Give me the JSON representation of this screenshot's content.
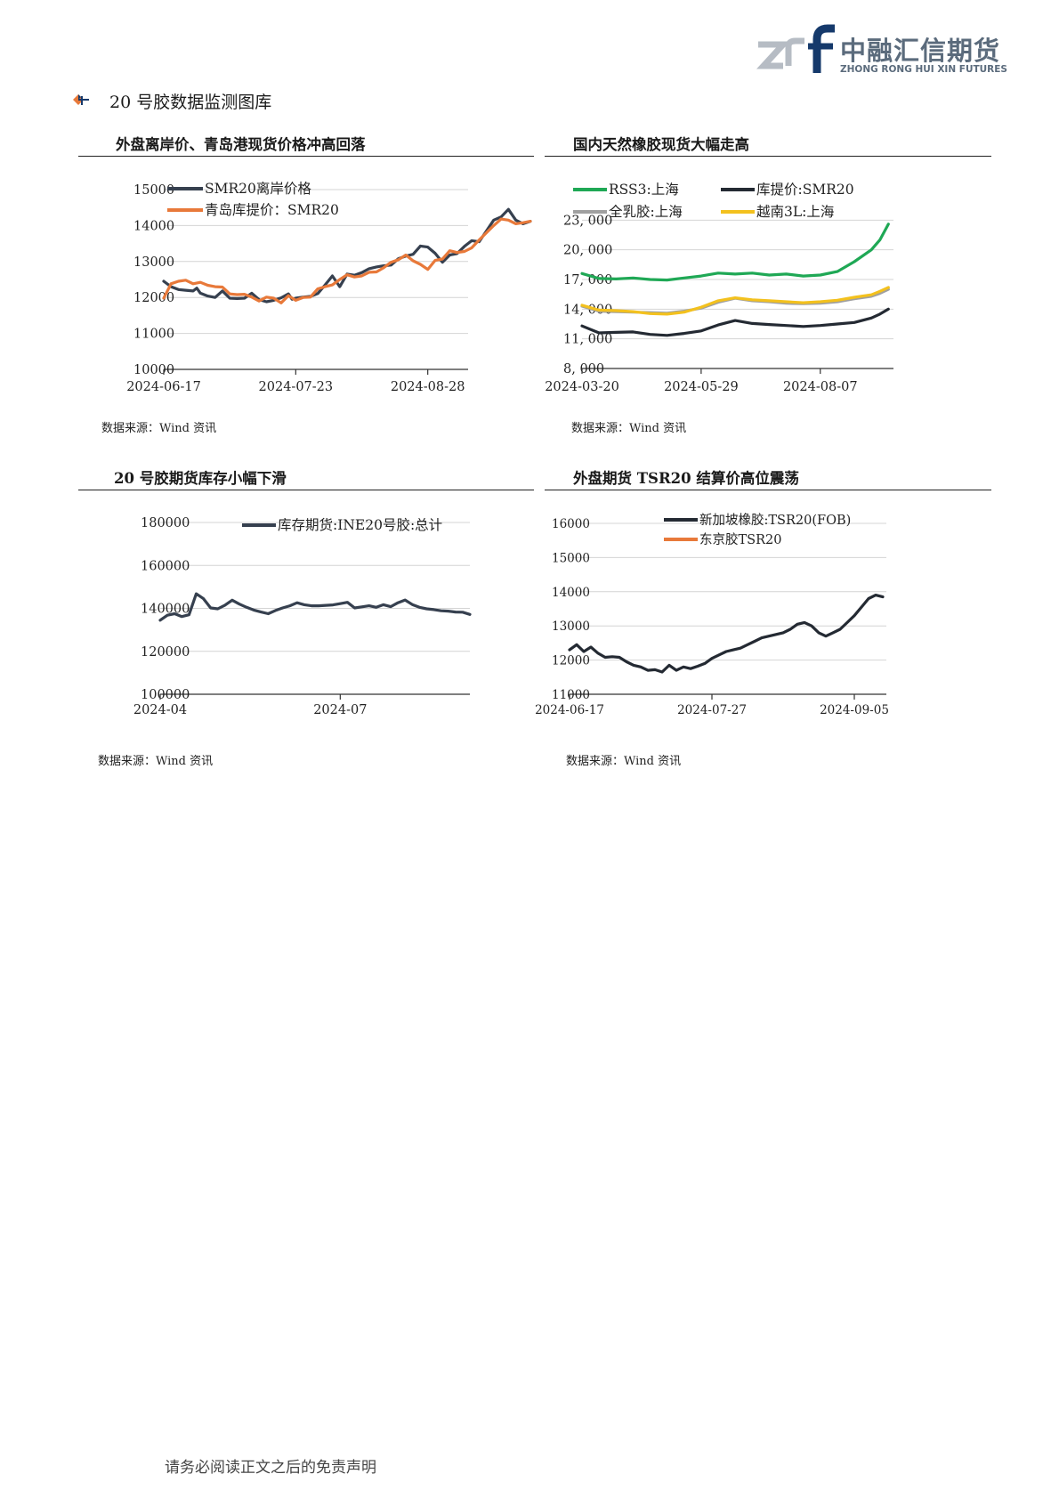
{
  "logo": {
    "cn": "中融汇信期货",
    "en": "ZHONG RONG HUI XIN FUTURES",
    "brand_color": "#15396b",
    "mark_color": "#b6bcc4"
  },
  "section": {
    "title": "20 号胶数据监测图库",
    "icon": "diamond-arrow-icon"
  },
  "footer": {
    "disclaimer": "请务必阅读正文之后的免责声明"
  },
  "charts": [
    {
      "title": "外盘离岸价、青岛港现货价格冲高回落",
      "source": "数据来源：Wind 资讯",
      "chart_data": {
        "type": "line",
        "xlabel": "",
        "ylabel": "",
        "ylim": [
          10000,
          15000
        ],
        "yticks": [
          10000,
          11000,
          12000,
          13000,
          14000,
          15000
        ],
        "ytick_labels": [
          "10000",
          "11000",
          "12000",
          "13000",
          "14000",
          "15000"
        ],
        "xlim": [
          0,
          83
        ],
        "xticks": [
          0,
          36,
          72
        ],
        "xtick_labels": [
          "2024-06-17",
          "2024-07-23",
          "2024-08-28"
        ],
        "legend": "top-left",
        "series": [
          {
            "name": "SMR20离岸价格",
            "color": "#36404f",
            "x": [
              0,
              2,
              4,
              6,
              8,
              9,
              10,
              12,
              14,
              16,
              18,
              20,
              22,
              24,
              26,
              28,
              30,
              32,
              34,
              35,
              36,
              38,
              40,
              42,
              44,
              46,
              48,
              50,
              52,
              54,
              56,
              58,
              60,
              62,
              64,
              66,
              68,
              70,
              72,
              74,
              76,
              78,
              80,
              82,
              84,
              86,
              88,
              90,
              92,
              94,
              96,
              98,
              100
            ],
            "values": [
              12450,
              12300,
              12220,
              12200,
              12180,
              12260,
              12120,
              12040,
              12000,
              12180,
              11980,
              11970,
              11980,
              12120,
              11940,
              11880,
              11920,
              11990,
              12100,
              11950,
              11980,
              12010,
              12030,
              12110,
              12350,
              12600,
              12300,
              12650,
              12620,
              12690,
              12800,
              12850,
              12880,
              12900,
              13080,
              13150,
              13200,
              13430,
              13400,
              13230,
              12980,
              13180,
              13220,
              13420,
              13580,
              13550,
              13850,
              14150,
              14240,
              14450,
              14150,
              14050,
              14120
            ]
          },
          {
            "name": "青岛库提价：SMR20",
            "color": "#e8793a",
            "x": [
              0,
              2,
              4,
              6,
              8,
              10,
              12,
              14,
              16,
              18,
              20,
              22,
              24,
              26,
              28,
              30,
              32,
              34,
              36,
              38,
              40,
              42,
              44,
              46,
              48,
              50,
              52,
              54,
              56,
              58,
              60,
              62,
              64,
              66,
              68,
              70,
              72,
              74,
              76,
              78,
              80,
              82,
              84,
              86,
              88,
              90,
              92,
              94,
              96,
              98,
              100
            ],
            "values": [
              11980,
              12380,
              12450,
              12480,
              12380,
              12420,
              12340,
              12300,
              12290,
              12100,
              12080,
              12090,
              12010,
              11900,
              12010,
              11980,
              11850,
              12050,
              11920,
              12000,
              12010,
              12240,
              12300,
              12350,
              12500,
              12630,
              12570,
              12600,
              12700,
              12710,
              12830,
              12980,
              13050,
              13180,
              13020,
              12920,
              12780,
              13030,
              13070,
              13300,
              13250,
              13280,
              13380,
              13600,
              13800,
              14000,
              14180,
              14150,
              14050,
              14080,
              14120
            ]
          }
        ]
      }
    },
    {
      "title": "国内天然橡胶现货大幅走高",
      "source": "数据来源：Wind 资讯",
      "chart_data": {
        "type": "line",
        "xlabel": "",
        "ylabel": "",
        "ylim": [
          8000,
          26000
        ],
        "yticks": [
          8000,
          11000,
          14000,
          17000,
          20000,
          23000
        ],
        "ytick_labels": [
          "8, 000",
          "11, 000",
          "14, 000",
          "17, 000",
          "20, 000",
          "23, 000"
        ],
        "xlim": [
          0,
          183
        ],
        "xticks": [
          0,
          70,
          140
        ],
        "xtick_labels": [
          "2024-03-20",
          "2024-05-29",
          "2024-08-07"
        ],
        "legend": "top",
        "series": [
          {
            "name": "RSS3:上海",
            "color": "#1fa855",
            "x": [
              0,
              10,
              20,
              30,
              40,
              50,
              60,
              70,
              80,
              90,
              100,
              110,
              120,
              130,
              140,
              150,
              160,
              170,
              175,
              180
            ],
            "values": [
              17600,
              17100,
              17050,
              17150,
              17000,
              16950,
              17150,
              17350,
              17650,
              17550,
              17650,
              17450,
              17550,
              17350,
              17450,
              17800,
              18800,
              20000,
              21000,
              22600
            ]
          },
          {
            "name": "库提价:SMR20",
            "color": "#242a33",
            "x": [
              0,
              10,
              20,
              30,
              40,
              50,
              60,
              70,
              80,
              90,
              100,
              110,
              120,
              130,
              140,
              150,
              160,
              170,
              175,
              180
            ],
            "values": [
              12300,
              11600,
              11650,
              11700,
              11450,
              11350,
              11550,
              11800,
              12400,
              12850,
              12550,
              12450,
              12350,
              12250,
              12350,
              12500,
              12650,
              13100,
              13500,
              14000
            ]
          },
          {
            "name": "全乳胶:上海",
            "color": "#a0a0a0",
            "x": [
              0,
              10,
              20,
              30,
              40,
              50,
              60,
              70,
              80,
              90,
              100,
              110,
              120,
              130,
              140,
              150,
              160,
              170,
              175,
              180
            ],
            "values": [
              14300,
              13800,
              13750,
              13700,
              13650,
              13600,
              13800,
              14100,
              14700,
              15100,
              14850,
              14750,
              14600,
              14550,
              14600,
              14750,
              15050,
              15300,
              15600,
              16000
            ]
          },
          {
            "name": "越南3L:上海",
            "color": "#f3c11e",
            "x": [
              0,
              10,
              20,
              30,
              40,
              50,
              60,
              70,
              80,
              90,
              100,
              110,
              120,
              130,
              140,
              150,
              160,
              170,
              175,
              180
            ],
            "values": [
              14400,
              13900,
              13850,
              13750,
              13550,
              13500,
              13700,
              14200,
              14850,
              15150,
              14950,
              14850,
              14750,
              14650,
              14750,
              14900,
              15200,
              15450,
              15800,
              16200
            ]
          }
        ]
      }
    },
    {
      "title": "20 号胶期货库存小幅下滑",
      "source": "数据来源：Wind 资讯",
      "chart_data": {
        "type": "line",
        "xlabel": "",
        "ylabel": "",
        "ylim": [
          100000,
          180000
        ],
        "yticks": [
          100000,
          120000,
          140000,
          160000,
          180000
        ],
        "ytick_labels": [
          "100000",
          "120000",
          "140000",
          "160000",
          "180000"
        ],
        "xlim": [
          0,
          172
        ],
        "xticks": [
          0,
          100
        ],
        "xtick_labels": [
          "2024-04",
          "2024-07"
        ],
        "legend": "top-right",
        "series": [
          {
            "name": "库存期货:INE20号胶:总计",
            "color": "#36404f",
            "x": [
              0,
              4,
              8,
              12,
              16,
              20,
              24,
              28,
              32,
              36,
              40,
              44,
              48,
              52,
              56,
              60,
              64,
              68,
              72,
              76,
              80,
              84,
              88,
              92,
              96,
              100,
              104,
              108,
              112,
              116,
              120,
              124,
              128,
              132,
              136,
              140,
              144,
              148,
              152,
              156,
              160,
              164,
              168,
              172
            ],
            "values": [
              134500,
              136800,
              137500,
              136200,
              137000,
              146800,
              144500,
              140200,
              139800,
              141500,
              143800,
              142000,
              140500,
              139200,
              138300,
              137500,
              139000,
              140200,
              141200,
              142600,
              141700,
              141200,
              141200,
              141400,
              141600,
              142200,
              142800,
              140200,
              140700,
              141200,
              140500,
              141700,
              140800,
              142600,
              143900,
              141800,
              140500,
              139800,
              139400,
              138900,
              138700,
              138300,
              138200,
              137200
            ]
          }
        ]
      }
    },
    {
      "title": "外盘期货 TSR20 结算价高位震荡",
      "source": "数据来源：Wind 资讯",
      "chart_data": {
        "type": "line",
        "xlabel": "",
        "ylabel": "",
        "ylim": [
          11000,
          16000
        ],
        "yticks": [
          11000,
          12000,
          13000,
          14000,
          15000,
          16000
        ],
        "ytick_labels": [
          "11000",
          "12000",
          "13000",
          "14000",
          "15000",
          "16000"
        ],
        "xlim": [
          0,
          89
        ],
        "xticks": [
          0,
          40,
          80
        ],
        "xtick_labels": [
          "2024-06-17",
          "2024-07-27",
          "2024-09-05"
        ],
        "legend": "top",
        "series": [
          {
            "name": "新加坡橡胶:TSR20(FOB)",
            "color": "#242a33",
            "x": [
              0,
              2,
              4,
              6,
              8,
              10,
              12,
              14,
              16,
              18,
              20,
              22,
              24,
              26,
              28,
              30,
              32,
              34,
              36,
              38,
              40,
              42,
              44,
              46,
              48,
              50,
              52,
              54,
              56,
              58,
              60,
              62,
              64,
              66,
              68,
              70,
              72,
              74,
              76,
              78,
              80,
              82,
              84,
              86,
              88
            ],
            "values": [
              12300,
              12450,
              12250,
              12380,
              12200,
              12080,
              12100,
              12080,
              11950,
              11850,
              11800,
              11700,
              11720,
              11650,
              11850,
              11700,
              11800,
              11750,
              11820,
              11900,
              12050,
              12150,
              12250,
              12300,
              12350,
              12450,
              12550,
              12650,
              12700,
              12750,
              12800,
              12900,
              13050,
              13100,
              13000,
              12800,
              12700,
              12800,
              12900,
              13100,
              13300,
              13550,
              13800,
              13900,
              13850
            ]
          },
          {
            "name": "东京胶TSR20",
            "color": "#e8793a",
            "x": [],
            "values": []
          }
        ]
      }
    }
  ]
}
